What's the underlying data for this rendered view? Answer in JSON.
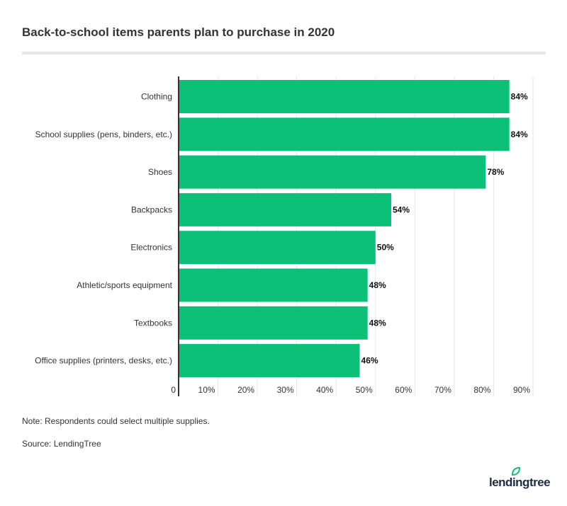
{
  "title": "Back-to-school items parents plan to purchase in 2020",
  "note": "Note: Respondents could select multiple supplies.",
  "source": "Source: LendingTree",
  "logo": "lendingtree",
  "chart_data": {
    "type": "bar",
    "orientation": "horizontal",
    "title": "Back-to-school items parents plan to purchase in 2020",
    "categories": [
      "Clothing",
      "School supplies (pens, binders, etc.)",
      "Shoes",
      "Backpacks",
      "Electronics",
      "Athletic/sports equipment",
      "Textbooks",
      "Office supplies (printers, desks, etc.)"
    ],
    "values": [
      84,
      84,
      78,
      54,
      50,
      48,
      48,
      46
    ],
    "data_labels": [
      "84%",
      "84%",
      "78%",
      "54%",
      "50%",
      "48%",
      "48%",
      "46%"
    ],
    "xlim": [
      0,
      90
    ],
    "xticks": [
      "0",
      "10%",
      "20%",
      "30%",
      "40%",
      "50%",
      "60%",
      "70%",
      "80%",
      "90%"
    ],
    "grid": true,
    "bar_color": "#0cc177"
  }
}
